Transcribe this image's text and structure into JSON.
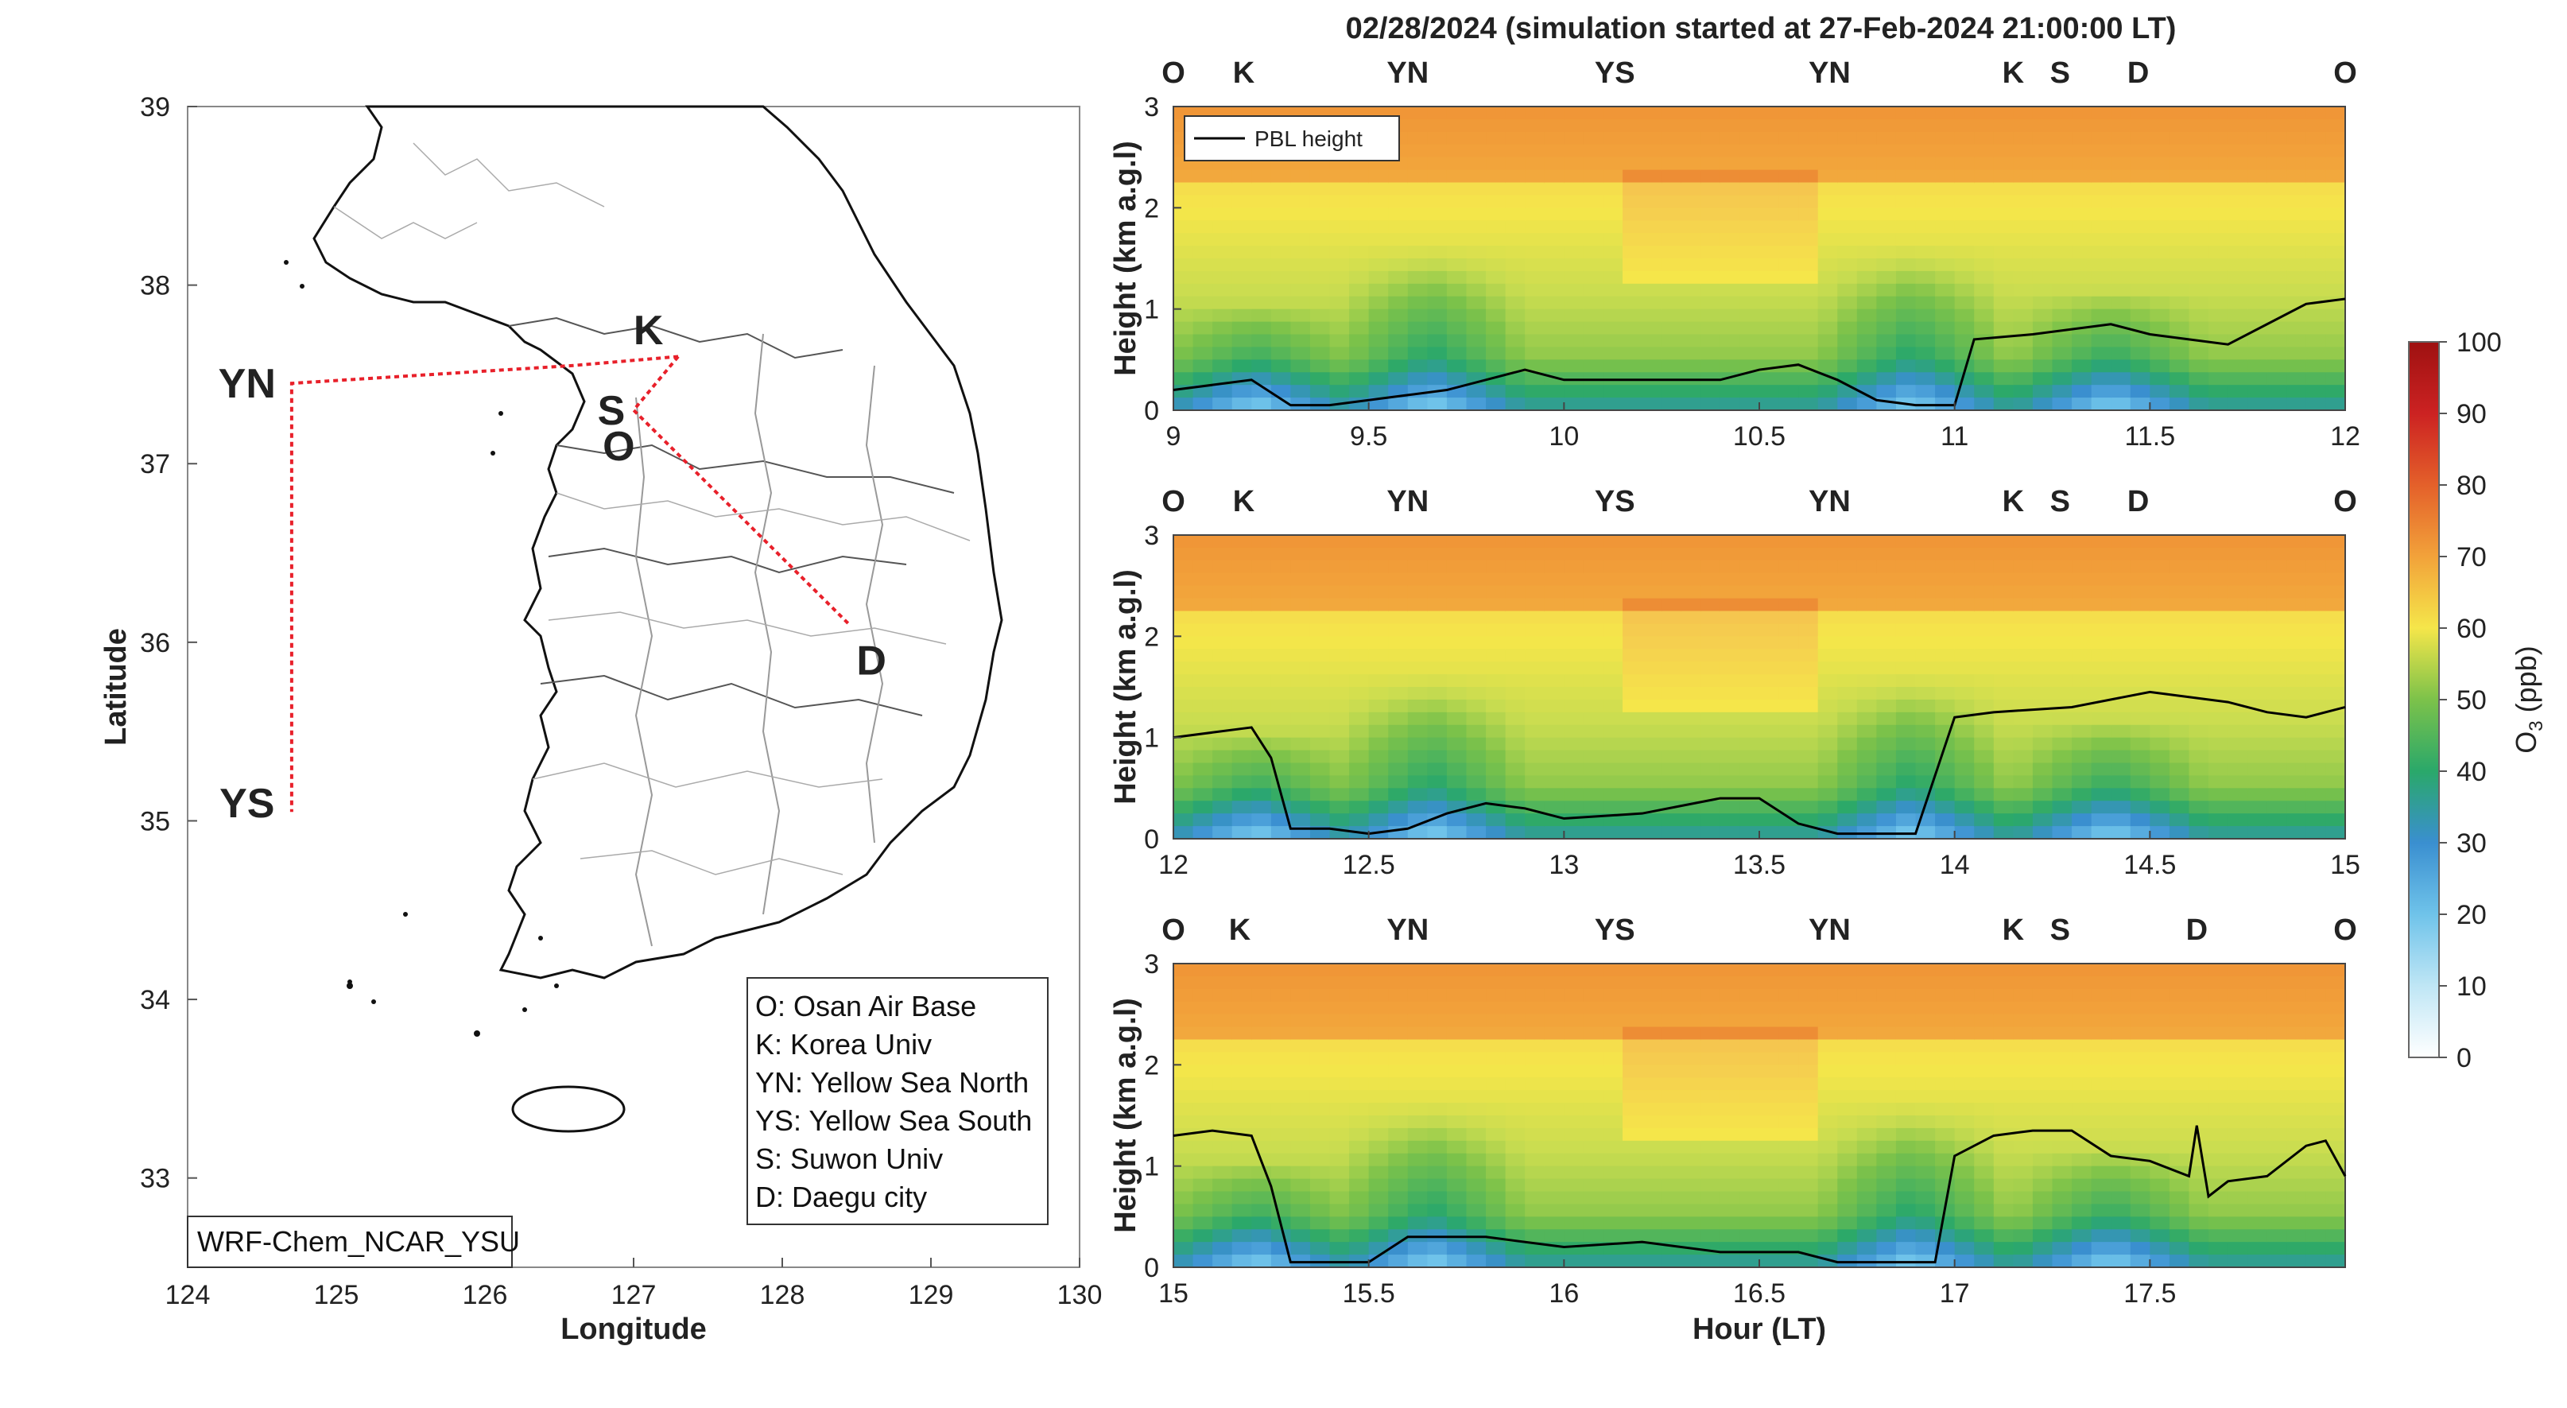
{
  "figure_title": "02/28/2024 (simulation started at 27-Feb-2024 21:00:00 LT)",
  "colors": {
    "O": "#000000",
    "K": "#4DBEEE",
    "YN": "#77AC30",
    "YS": "#EDB120",
    "S": "#7E2F8E",
    "D": "#D95319",
    "flight_track": "#e8202a",
    "pbl_line": "#000000"
  },
  "map": {
    "xlabel": "Longitude",
    "ylabel": "Latitude",
    "xticks": [
      "124",
      "125",
      "126",
      "127",
      "128",
      "129",
      "130"
    ],
    "yticks": [
      "33",
      "34",
      "35",
      "36",
      "37",
      "38",
      "39"
    ],
    "xlim": [
      124,
      130
    ],
    "ylim": [
      32.5,
      39
    ],
    "model_label": "WRF-Chem_NCAR_YSU",
    "legend": [
      "O: Osan Air Base",
      "K: Korea Univ",
      "YN: Yellow Sea North",
      "YS: Yellow Sea South",
      "S: Suwon Univ",
      "D: Daegu city"
    ],
    "sites": [
      {
        "key": "O",
        "label": "O",
        "lon": 126.9,
        "lat": 37.1
      },
      {
        "key": "K",
        "label": "K",
        "lon": 127.1,
        "lat": 37.75
      },
      {
        "key": "S",
        "label": "S",
        "lon": 126.85,
        "lat": 37.3
      },
      {
        "key": "D",
        "label": "D",
        "lon": 128.6,
        "lat": 35.9
      },
      {
        "key": "YN",
        "label": "YN",
        "lon": 124.4,
        "lat": 37.45
      },
      {
        "key": "YS",
        "label": "YS",
        "lon": 124.4,
        "lat": 35.1
      }
    ],
    "track": [
      [
        127.3,
        37.6
      ],
      [
        126.6,
        37.55
      ],
      [
        124.7,
        37.45
      ],
      [
        124.7,
        35.05
      ]
    ],
    "track2": [
      [
        127.3,
        37.6
      ],
      [
        127.2,
        37.5
      ],
      [
        127.0,
        37.3
      ],
      [
        128.45,
        36.1
      ]
    ]
  },
  "chart_data": [
    {
      "type": "heatmap",
      "panel": "top",
      "ylabel": "Height (km a.g.l)",
      "xlim": [
        9,
        12
      ],
      "ylim": [
        0,
        3
      ],
      "xticks": [
        "9",
        "9.5",
        "10",
        "10.5",
        "11",
        "11.5",
        "12"
      ],
      "yticks": [
        "0",
        "1",
        "2",
        "3"
      ],
      "legend": "PBL height",
      "site_sequence": [
        {
          "label": "O",
          "x": 9.0
        },
        {
          "label": "K",
          "x": 9.18
        },
        {
          "label": "YN",
          "x": 9.6
        },
        {
          "label": "YS",
          "x": 10.13
        },
        {
          "label": "YN",
          "x": 10.68
        },
        {
          "label": "K",
          "x": 11.15
        },
        {
          "label": "S",
          "x": 11.27
        },
        {
          "label": "D",
          "x": 11.47
        },
        {
          "label": "O",
          "x": 12.0
        }
      ],
      "pbl_height": {
        "x": [
          9.0,
          9.1,
          9.2,
          9.3,
          9.4,
          9.5,
          9.6,
          9.7,
          9.8,
          9.9,
          10.0,
          10.2,
          10.4,
          10.5,
          10.6,
          10.7,
          10.8,
          10.9,
          11.0,
          11.05,
          11.2,
          11.3,
          11.4,
          11.5,
          11.6,
          11.7,
          11.8,
          11.9,
          12.0
        ],
        "y": [
          0.2,
          0.25,
          0.3,
          0.05,
          0.05,
          0.1,
          0.15,
          0.2,
          0.3,
          0.4,
          0.3,
          0.3,
          0.3,
          0.4,
          0.45,
          0.3,
          0.1,
          0.05,
          0.05,
          0.7,
          0.75,
          0.8,
          0.85,
          0.75,
          0.7,
          0.65,
          0.85,
          1.05,
          1.1
        ]
      }
    },
    {
      "type": "heatmap",
      "panel": "middle",
      "ylabel": "Height (km a.g.l)",
      "xlim": [
        12,
        15
      ],
      "ylim": [
        0,
        3
      ],
      "xticks": [
        "12",
        "12.5",
        "13",
        "13.5",
        "14",
        "14.5",
        "15"
      ],
      "yticks": [
        "0",
        "1",
        "2",
        "3"
      ],
      "site_sequence": [
        {
          "label": "O",
          "x": 12.0
        },
        {
          "label": "K",
          "x": 12.18
        },
        {
          "label": "YN",
          "x": 12.6
        },
        {
          "label": "YS",
          "x": 13.13
        },
        {
          "label": "YN",
          "x": 13.68
        },
        {
          "label": "K",
          "x": 14.15
        },
        {
          "label": "S",
          "x": 14.27
        },
        {
          "label": "D",
          "x": 14.47
        },
        {
          "label": "O",
          "x": 15.0
        }
      ],
      "pbl_height": {
        "x": [
          12.0,
          12.1,
          12.2,
          12.25,
          12.3,
          12.4,
          12.5,
          12.6,
          12.7,
          12.8,
          12.9,
          13.0,
          13.2,
          13.4,
          13.5,
          13.6,
          13.7,
          13.8,
          13.9,
          14.0,
          14.1,
          14.3,
          14.5,
          14.6,
          14.7,
          14.8,
          14.9,
          15.0
        ],
        "y": [
          1.0,
          1.05,
          1.1,
          0.8,
          0.1,
          0.1,
          0.05,
          0.1,
          0.25,
          0.35,
          0.3,
          0.2,
          0.25,
          0.4,
          0.4,
          0.15,
          0.05,
          0.05,
          0.05,
          1.2,
          1.25,
          1.3,
          1.45,
          1.4,
          1.35,
          1.25,
          1.2,
          1.3
        ]
      }
    },
    {
      "type": "heatmap",
      "panel": "bottom",
      "ylabel": "Height (km a.g.l)",
      "xlabel": "Hour (LT)",
      "xlim": [
        15,
        18
      ],
      "ylim": [
        0,
        3
      ],
      "xticks": [
        "15",
        "15.5",
        "16",
        "16.5",
        "17",
        "17.5"
      ],
      "yticks": [
        "0",
        "1",
        "2",
        "3"
      ],
      "site_sequence": [
        {
          "label": "O",
          "x": 15.0
        },
        {
          "label": "K",
          "x": 15.17
        },
        {
          "label": "YN",
          "x": 15.6
        },
        {
          "label": "YS",
          "x": 16.13
        },
        {
          "label": "YN",
          "x": 16.68
        },
        {
          "label": "K",
          "x": 17.15
        },
        {
          "label": "S",
          "x": 17.27
        },
        {
          "label": "D",
          "x": 17.62
        },
        {
          "label": "O",
          "x": 18.0
        }
      ],
      "pbl_height": {
        "x": [
          15.0,
          15.1,
          15.2,
          15.25,
          15.3,
          15.5,
          15.6,
          15.8,
          16.0,
          16.2,
          16.4,
          16.6,
          16.7,
          16.8,
          16.95,
          17.0,
          17.1,
          17.2,
          17.3,
          17.4,
          17.5,
          17.6,
          17.62,
          17.65,
          17.7,
          17.8,
          17.9,
          17.95,
          18.0
        ],
        "y": [
          1.3,
          1.35,
          1.3,
          0.8,
          0.05,
          0.05,
          0.3,
          0.3,
          0.2,
          0.25,
          0.15,
          0.15,
          0.05,
          0.05,
          0.05,
          1.1,
          1.3,
          1.35,
          1.35,
          1.1,
          1.05,
          0.9,
          1.4,
          0.7,
          0.85,
          0.9,
          1.2,
          1.25,
          0.9
        ]
      }
    }
  ],
  "colorbar": {
    "label": "O3 (ppb)",
    "label_main": "O",
    "label_sub": "3",
    "label_unit": " (ppb)",
    "ticks": [
      "0",
      "10",
      "20",
      "30",
      "40",
      "50",
      "60",
      "70",
      "80",
      "90",
      "100"
    ],
    "range": [
      0,
      100
    ]
  }
}
